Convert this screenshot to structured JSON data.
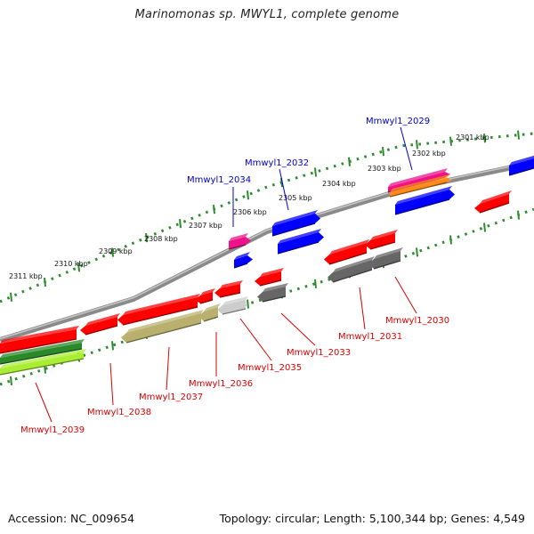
{
  "title": "Marinomonas sp. MWYL1, complete genome",
  "footer": {
    "accession_label": "Accession:",
    "accession_value": "NC_009654",
    "topology_label": "Topology:",
    "topology_value": "circular",
    "length_label": "Length:",
    "length_value": "5,100,344 bp",
    "genes_label": "Genes:",
    "genes_value": "4,549"
  },
  "colors": {
    "backbone": "#8a8a8a",
    "tick": "#2e8b2e",
    "forward_label": "#0000cc",
    "reverse_label": "#dd0000",
    "gene_red": "#ff0000",
    "gene_blue": "#0000ff",
    "gene_gray": "#666666",
    "gene_khaki": "#b8b06c",
    "gene_lightgray": "#cccccc",
    "gene_magenta": "#ee1188",
    "gene_orange": "#ff8c1a",
    "gene_green": "#2a8a2a",
    "gene_lime": "#aaee33"
  },
  "scale_ticks": [
    "2311 kbp",
    "2310 kbp",
    "2309 kbp",
    "2308 kbp",
    "2307 kbp",
    "2306 kbp",
    "2305 kbp",
    "2304 kbp",
    "2303 kbp",
    "2302 kbp",
    "2301 kbp"
  ],
  "forward_labels": [
    "Mmwyl1_2034",
    "Mmwyl1_2032",
    "Mmwyl1_2029"
  ],
  "reverse_labels": [
    "Mmwyl1_2039",
    "Mmwyl1_2038",
    "Mmwyl1_2037",
    "Mmwyl1_2036",
    "Mmwyl1_2035",
    "Mmwyl1_2033",
    "Mmwyl1_2031",
    "Mmwyl1_2030"
  ]
}
